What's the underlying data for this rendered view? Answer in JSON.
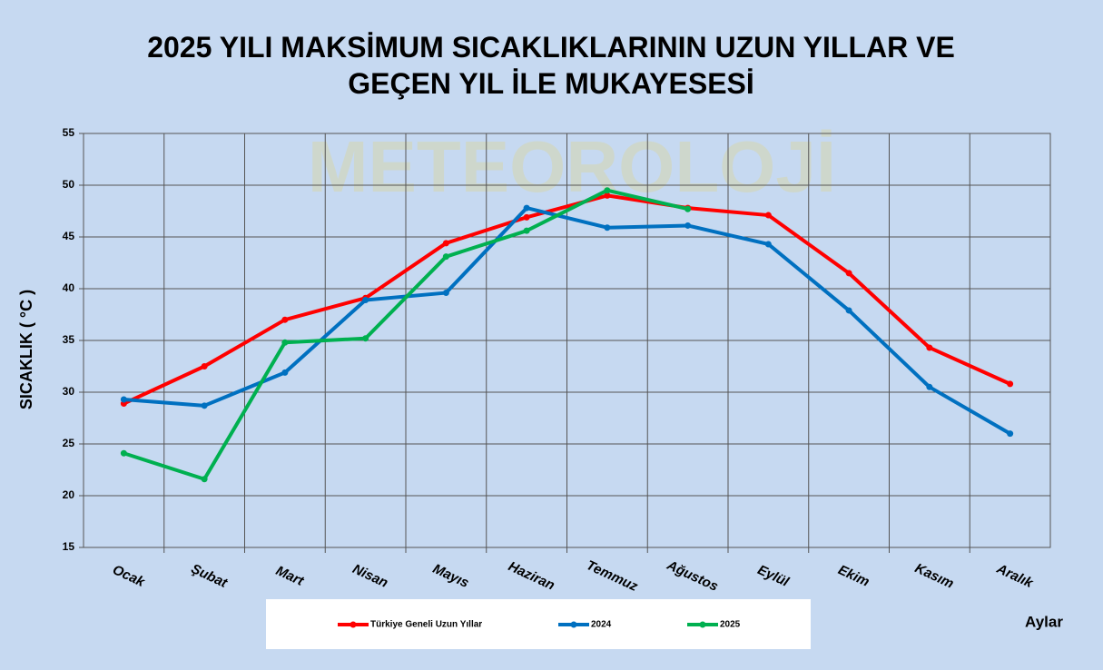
{
  "chart_data": {
    "type": "line",
    "title": "2025 YILI MAKSİMUM SICAKLIKLARININ UZUN YILLAR VE GEÇEN YIL İLE MUKAYESESİ",
    "watermark": "METEOROLOJİ",
    "y_label": "SICAKLIK ( °C )",
    "x_label": "Aylar",
    "categories": [
      "Ocak",
      "Şubat",
      "Mart",
      "Nisan",
      "Mayıs",
      "Haziran",
      "Temmuz",
      "Ağustos",
      "Eylül",
      "Ekim",
      "Kasım",
      "Aralık"
    ],
    "series": [
      {
        "name": "Türkiye Geneli Uzun Yıllar",
        "color": "#ff0000",
        "values": [
          28.9,
          32.5,
          37.0,
          39.1,
          44.4,
          46.9,
          49.0,
          47.8,
          47.1,
          41.5,
          34.3,
          30.8
        ]
      },
      {
        "name": "2024",
        "color": "#0070c0",
        "values": [
          29.3,
          28.7,
          31.9,
          38.9,
          39.6,
          47.8,
          45.9,
          46.1,
          44.3,
          37.9,
          30.5,
          26.0
        ]
      },
      {
        "name": "2025",
        "color": "#00b050",
        "values": [
          24.1,
          21.6,
          34.8,
          35.2,
          43.1,
          45.6,
          49.5,
          47.7,
          null,
          null,
          null,
          null
        ]
      }
    ],
    "ylim": [
      15,
      55
    ],
    "yticks": [
      15,
      20,
      25,
      30,
      35,
      40,
      45,
      50,
      55
    ],
    "grid": true
  }
}
